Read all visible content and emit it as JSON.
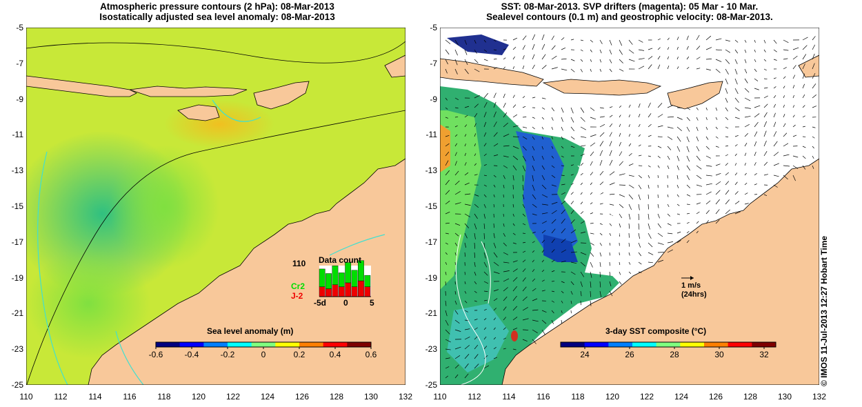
{
  "left_panel": {
    "title_line1": "Atmospheric pressure contours (2 hPa): 08-Mar-2013",
    "title_line2": "Isostatically adjusted sea level anomaly: 08-Mar-2013",
    "colorbar": {
      "label": "Sea level anomaly (m)",
      "ticks": [
        "-0.6",
        "-0.4",
        "-0.2",
        "0",
        "0.2",
        "0.4",
        "0.6"
      ],
      "colors": [
        "#00007f",
        "#0000ff",
        "#007fff",
        "#00ffff",
        "#7fff7f",
        "#ffff00",
        "#ff7f00",
        "#ff0000",
        "#7f0000"
      ]
    },
    "data_count": {
      "title": "Data count",
      "ymax_label": "110",
      "series": [
        {
          "name": "Cr2",
          "color": "#00dd00"
        },
        {
          "name": "J-2",
          "color": "#ee0000"
        }
      ],
      "x_ticks": [
        "-5d",
        "0",
        "5"
      ],
      "cr2_counts": [
        70,
        60,
        75,
        55,
        80,
        65,
        80,
        45
      ],
      "j2_counts": [
        25,
        20,
        30,
        25,
        35,
        25,
        40,
        25
      ],
      "ymax": 110
    }
  },
  "right_panel": {
    "title_line1": "SST: 08-Mar-2013. SVP drifters (magenta): 05 Mar - 10 Mar.",
    "title_line2": "Sealevel contours (0.1 m) and geostrophic velocity: 08-Mar-2013.",
    "colorbar": {
      "label": "3-day SST composite (°C)",
      "ticks": [
        "24",
        "26",
        "28",
        "30",
        "32"
      ],
      "colors": [
        "#00007f",
        "#0000ff",
        "#007fff",
        "#00ffff",
        "#7fff7f",
        "#ffff00",
        "#ff7f00",
        "#ff0000",
        "#7f0000"
      ]
    },
    "velocity_scale": {
      "line1": "1 m/s",
      "line2": "(24hrs)"
    }
  },
  "axes": {
    "y_ticks": [
      "-5",
      "-7",
      "-9",
      "-11",
      "-13",
      "-15",
      "-17",
      "-19",
      "-21",
      "-23",
      "-25"
    ],
    "x_ticks": [
      "110",
      "112",
      "114",
      "116",
      "118",
      "120",
      "122",
      "124",
      "126",
      "128",
      "130",
      "132"
    ]
  },
  "colors": {
    "land": "#f8c89a",
    "contour_cyan": "#40e0d0"
  },
  "credit": "© IMOS 11-Jul-2013 12:27 Hobart Time"
}
